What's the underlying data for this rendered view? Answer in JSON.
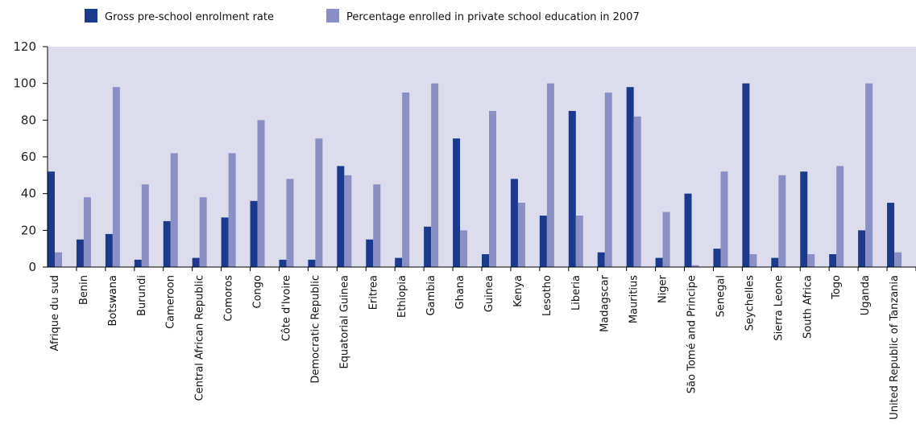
{
  "chart_data": {
    "type": "bar",
    "categories": [
      "Afrique du sud",
      "Benin",
      "Botswana",
      "Burundi",
      "Cameroon",
      "Central African Republic",
      "Comoros",
      "Congo",
      "Côte d'Ivoire",
      "Democratic Republic",
      "Equatorial Guinea",
      "Eritrea",
      "Ethiopia",
      "Gambia",
      "Ghana",
      "Guinea",
      "Kenya",
      "Lesotho",
      "Liberia",
      "Madagscar",
      "Mauritius",
      "Niger",
      "São Tomé and Principe",
      "Senegal",
      "Seychelles",
      "Sierra Leone",
      "South Africa",
      "Togo",
      "Uganda",
      "United Republic of Tanzania"
    ],
    "series": [
      {
        "name": "Gross pre-school enrolment rate",
        "color": "#1b3a8c",
        "values": [
          52,
          15,
          18,
          4,
          25,
          5,
          27,
          36,
          4,
          4,
          55,
          15,
          5,
          22,
          70,
          7,
          48,
          28,
          85,
          8,
          98,
          5,
          40,
          10,
          100,
          5,
          52,
          7,
          20,
          35
        ]
      },
      {
        "name": "Percentage enrolled in private school education in 2007",
        "color": "#8a8fc4",
        "values": [
          8,
          38,
          98,
          45,
          62,
          38,
          62,
          80,
          48,
          70,
          50,
          45,
          95,
          100,
          20,
          85,
          35,
          100,
          28,
          95,
          82,
          30,
          1,
          52,
          7,
          50,
          7,
          55,
          100,
          8
        ]
      }
    ],
    "title": "",
    "xlabel": "",
    "ylabel": "",
    "ylim": [
      0,
      120
    ],
    "yticks": [
      0,
      20,
      40,
      60,
      80,
      100,
      120
    ],
    "grid": false,
    "legend_position": "top",
    "plot_background": "#dcdcec"
  }
}
